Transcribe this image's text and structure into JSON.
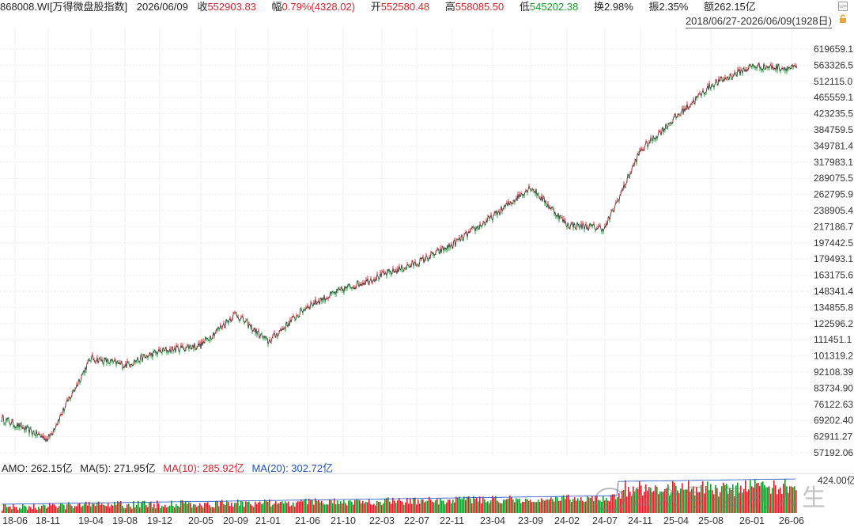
{
  "header": {
    "symbol": "868008.WI[万得微盘股指数]",
    "date": "2026/06/09",
    "close_label": "收",
    "close": "552903.83",
    "change_label": "幅",
    "change": "0.79%(4328.02)",
    "open_label": "开",
    "open": "552580.48",
    "high_label": "高",
    "high": "558085.50",
    "low_label": "低",
    "low": "545202.38",
    "turnover_label": "换",
    "turnover": "2.98%",
    "amplitude_label": "振",
    "amplitude": "2.35%",
    "amount_label": "额",
    "amount": "262.15亿",
    "range": "2018/06/27-2026/06/09(1928日)"
  },
  "icons": [
    "wp-icon",
    "settings-icon"
  ],
  "colors": {
    "up": "#d0252e",
    "down": "#139c2b",
    "ma10": "#d0252e",
    "ma20": "#1f4fbf",
    "grid": "#e6e6e6"
  },
  "volume_legend": {
    "amo": "AMO: 262.15亿",
    "ma5": "MA(5): 271.95亿",
    "ma10": "MA(10): 285.92亿",
    "ma20": "MA(20): 302.72亿",
    "axis_max": "424.00亿"
  },
  "watermark": "公众号·复利人生",
  "chart_data": {
    "type": "line",
    "scale": "log",
    "y_ticks": [
      "619659.1",
      "563326.5",
      "512115.0",
      "465559.1",
      "423235.5",
      "384759.5",
      "349781.4",
      "317983.1",
      "289075.5",
      "262795.9",
      "238905.4",
      "217186.7",
      "197442.5",
      "179493.1",
      "163175.6",
      "148341.4",
      "134855.8",
      "122596.2",
      "111451.1",
      "101319.2",
      "92108.39",
      "83734.90",
      "76122.63",
      "69202.40",
      "62911.27",
      "57192.06"
    ],
    "x_ticks": [
      "18-06",
      "18-11",
      "19-04",
      "19-08",
      "19-12",
      "20-05",
      "20-09",
      "21-01",
      "21-06",
      "21-10",
      "22-03",
      "22-07",
      "22-11",
      "23-04",
      "23-09",
      "24-02",
      "24-07",
      "24-11",
      "25-04",
      "25-08",
      "26-01",
      "26-06"
    ],
    "x": [
      "18-06",
      "18-11",
      "19-04",
      "19-08",
      "19-12",
      "20-05",
      "20-09",
      "21-01",
      "21-06",
      "21-10",
      "22-03",
      "22-07",
      "22-11",
      "23-04",
      "23-09",
      "24-02",
      "24-07",
      "24-11",
      "25-04",
      "25-08",
      "26-01",
      "26-06"
    ],
    "series": [
      {
        "values": [
          70000,
          62000,
          100000,
          96000,
          104000,
          108000,
          130000,
          110000,
          136000,
          150000,
          163000,
          175000,
          195000,
          230000,
          275000,
          220000,
          215000,
          340000,
          415000,
          500000,
          560000,
          552903.83
        ]
      }
    ]
  }
}
